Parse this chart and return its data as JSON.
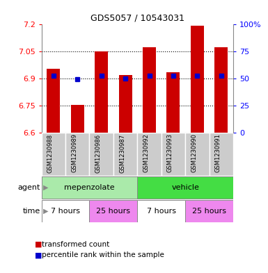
{
  "title": "GDS5057 / 10543031",
  "samples": [
    "GSM1230988",
    "GSM1230989",
    "GSM1230986",
    "GSM1230987",
    "GSM1230992",
    "GSM1230993",
    "GSM1230990",
    "GSM1230991"
  ],
  "bar_tops": [
    6.955,
    6.755,
    7.05,
    6.92,
    7.075,
    6.935,
    7.195,
    7.075
  ],
  "bar_bottoms": [
    6.6,
    6.6,
    6.6,
    6.6,
    6.6,
    6.6,
    6.6,
    6.6
  ],
  "percentile_values": [
    6.915,
    6.895,
    6.915,
    6.9,
    6.915,
    6.915,
    6.915,
    6.915
  ],
  "bar_color": "#cc0000",
  "percentile_color": "#0000cc",
  "ylim": [
    6.6,
    7.2
  ],
  "yticks": [
    6.6,
    6.75,
    6.9,
    7.05,
    7.2
  ],
  "ytick_labels": [
    "6.6",
    "6.75",
    "6.9",
    "7.05",
    "7.2"
  ],
  "right_yticks": [
    0,
    25,
    50,
    75,
    100
  ],
  "right_ytick_labels": [
    "0",
    "25",
    "50",
    "75",
    "100%"
  ],
  "dotted_lines": [
    6.75,
    6.9,
    7.05
  ],
  "agent_groups": [
    {
      "label": "mepenzolate",
      "start": 0,
      "end": 4,
      "color": "#aaeaaa"
    },
    {
      "label": "vehicle",
      "start": 4,
      "end": 8,
      "color": "#44dd44"
    }
  ],
  "time_groups": [
    {
      "label": "7 hours",
      "start": 0,
      "end": 2,
      "color": "#ffffff"
    },
    {
      "label": "25 hours",
      "start": 2,
      "end": 4,
      "color": "#ee88ee"
    },
    {
      "label": "7 hours",
      "start": 4,
      "end": 6,
      "color": "#ffffff"
    },
    {
      "label": "25 hours",
      "start": 6,
      "end": 8,
      "color": "#ee88ee"
    }
  ],
  "legend_items": [
    {
      "label": "transformed count",
      "color": "#cc0000"
    },
    {
      "label": "percentile rank within the sample",
      "color": "#0000cc"
    }
  ],
  "bar_width": 0.55,
  "background_color": "#ffffff",
  "sample_box_color": "#cccccc",
  "tick_fontsize": 8,
  "label_fontsize": 8
}
